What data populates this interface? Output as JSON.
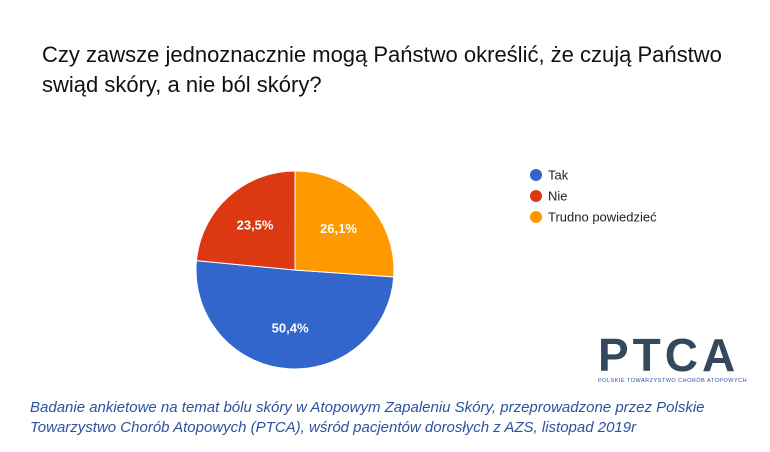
{
  "chart_data": {
    "type": "pie",
    "title": "Czy zawsze jednoznacznie mogą Państwo określić, że czują Państwo swiąd skóry, a nie ból skóry?",
    "categories": [
      "Tak",
      "Nie",
      "Trudno powiedzieć"
    ],
    "values": [
      50.4,
      23.5,
      26.1
    ],
    "value_labels": [
      "50,4%",
      "23,5%",
      "26,1%"
    ],
    "colors": [
      "#3366cc",
      "#dc3912",
      "#ff9900"
    ]
  },
  "logo": {
    "name": "PTCA",
    "subtitle": "POLSKIE TOWARZYSTWO CHORÓB ATOPOWYCH"
  },
  "footnote": "Badanie ankietowe na temat bólu skóry w Atopowym Zapaleniu Skóry, przeprowadzone przez Polskie Towarzystwo Chorób Atopowych (PTCA), wśród pacjentów dorosłych z AZS, listopad 2019r"
}
